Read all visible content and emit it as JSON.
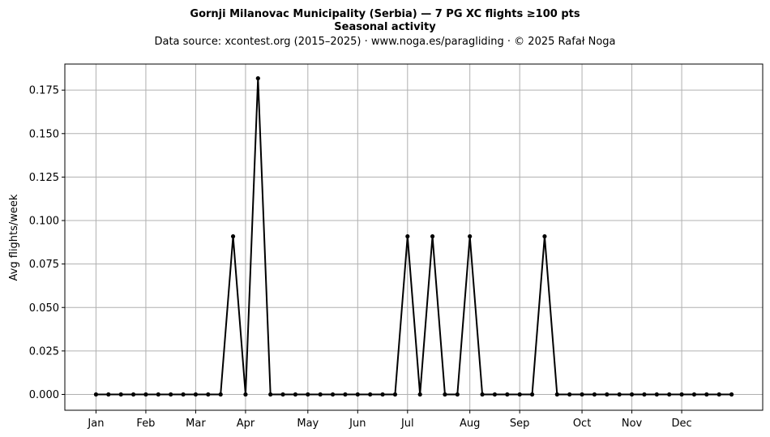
{
  "chart_data": {
    "type": "line",
    "title": "Gornji Milanovac Municipality (Serbia)  —  7 PG XC flights ≥100 pts",
    "subtitle": "Seasonal activity",
    "source_note": "Data source: xcontest.org (2015–2025)  ·  www.noga.es/paragliding  ·  © 2025 Rafał Noga",
    "xlabel": "",
    "ylabel": "Avg flights/week",
    "x_range": [
      -2.5,
      53.5
    ],
    "ylim": [
      -0.0091,
      0.19
    ],
    "y_ticks": [
      0.0,
      0.025,
      0.05,
      0.075,
      0.1,
      0.125,
      0.15,
      0.175
    ],
    "y_tick_labels": [
      "0.000",
      "0.025",
      "0.050",
      "0.075",
      "0.100",
      "0.125",
      "0.150",
      "0.175"
    ],
    "month_ticks": [
      {
        "label": "Jan",
        "week": 0
      },
      {
        "label": "Feb",
        "week": 4
      },
      {
        "label": "Mar",
        "week": 8
      },
      {
        "label": "Apr",
        "week": 12
      },
      {
        "label": "May",
        "week": 17
      },
      {
        "label": "Jun",
        "week": 21
      },
      {
        "label": "Jul",
        "week": 25
      },
      {
        "label": "Aug",
        "week": 30
      },
      {
        "label": "Sep",
        "week": 34
      },
      {
        "label": "Oct",
        "week": 39
      },
      {
        "label": "Nov",
        "week": 43
      },
      {
        "label": "Dec",
        "week": 47
      }
    ],
    "grid": true,
    "series": [
      {
        "color": "#000000",
        "x": [
          0,
          1,
          2,
          3,
          4,
          5,
          6,
          7,
          8,
          9,
          10,
          11,
          12,
          13,
          14,
          15,
          16,
          17,
          18,
          19,
          20,
          21,
          22,
          23,
          24,
          25,
          26,
          27,
          28,
          29,
          30,
          31,
          32,
          33,
          34,
          35,
          36,
          37,
          38,
          39,
          40,
          41,
          42,
          43,
          44,
          45,
          46,
          47,
          48,
          49,
          50,
          51
        ],
        "values": [
          0,
          0,
          0,
          0,
          0,
          0,
          0,
          0,
          0,
          0,
          0,
          0.0909,
          0,
          0.1818,
          0,
          0,
          0,
          0,
          0,
          0,
          0,
          0,
          0,
          0,
          0,
          0.0909,
          0,
          0.0909,
          0,
          0,
          0.0909,
          0,
          0,
          0,
          0,
          0,
          0.0909,
          0,
          0,
          0,
          0,
          0,
          0,
          0,
          0,
          0,
          0,
          0,
          0,
          0,
          0,
          0
        ]
      }
    ]
  }
}
